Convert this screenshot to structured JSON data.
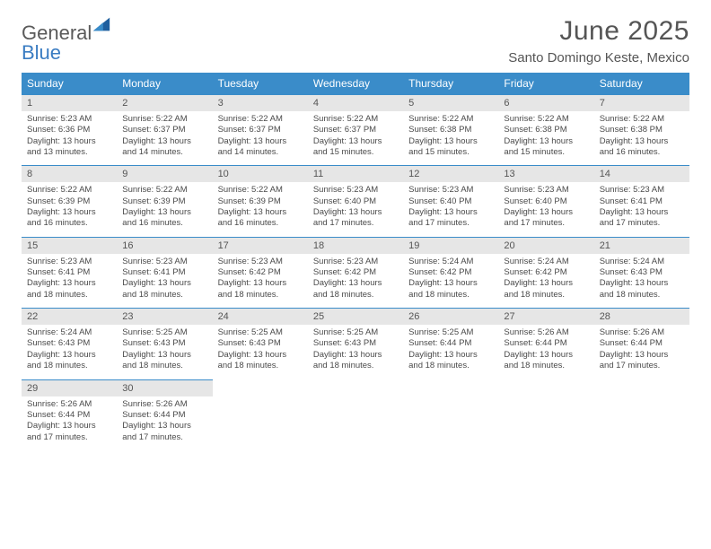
{
  "logo": {
    "line1": "General",
    "line2": "Blue"
  },
  "title": "June 2025",
  "subtitle": "Santo Domingo Keste, Mexico",
  "colors": {
    "header_bg": "#3a8cc9",
    "header_fg": "#ffffff",
    "daynum_bg": "#e6e6e6",
    "text": "#4a4a4a",
    "rule": "#3a8cc9",
    "logo_gray": "#5a5a5a",
    "logo_blue": "#3a7cc2"
  },
  "day_names": [
    "Sunday",
    "Monday",
    "Tuesday",
    "Wednesday",
    "Thursday",
    "Friday",
    "Saturday"
  ],
  "weeks": [
    [
      {
        "n": "1",
        "sr": "5:23 AM",
        "ss": "6:36 PM",
        "dl": "13 hours and 13 minutes."
      },
      {
        "n": "2",
        "sr": "5:22 AM",
        "ss": "6:37 PM",
        "dl": "13 hours and 14 minutes."
      },
      {
        "n": "3",
        "sr": "5:22 AM",
        "ss": "6:37 PM",
        "dl": "13 hours and 14 minutes."
      },
      {
        "n": "4",
        "sr": "5:22 AM",
        "ss": "6:37 PM",
        "dl": "13 hours and 15 minutes."
      },
      {
        "n": "5",
        "sr": "5:22 AM",
        "ss": "6:38 PM",
        "dl": "13 hours and 15 minutes."
      },
      {
        "n": "6",
        "sr": "5:22 AM",
        "ss": "6:38 PM",
        "dl": "13 hours and 15 minutes."
      },
      {
        "n": "7",
        "sr": "5:22 AM",
        "ss": "6:38 PM",
        "dl": "13 hours and 16 minutes."
      }
    ],
    [
      {
        "n": "8",
        "sr": "5:22 AM",
        "ss": "6:39 PM",
        "dl": "13 hours and 16 minutes."
      },
      {
        "n": "9",
        "sr": "5:22 AM",
        "ss": "6:39 PM",
        "dl": "13 hours and 16 minutes."
      },
      {
        "n": "10",
        "sr": "5:22 AM",
        "ss": "6:39 PM",
        "dl": "13 hours and 16 minutes."
      },
      {
        "n": "11",
        "sr": "5:23 AM",
        "ss": "6:40 PM",
        "dl": "13 hours and 17 minutes."
      },
      {
        "n": "12",
        "sr": "5:23 AM",
        "ss": "6:40 PM",
        "dl": "13 hours and 17 minutes."
      },
      {
        "n": "13",
        "sr": "5:23 AM",
        "ss": "6:40 PM",
        "dl": "13 hours and 17 minutes."
      },
      {
        "n": "14",
        "sr": "5:23 AM",
        "ss": "6:41 PM",
        "dl": "13 hours and 17 minutes."
      }
    ],
    [
      {
        "n": "15",
        "sr": "5:23 AM",
        "ss": "6:41 PM",
        "dl": "13 hours and 18 minutes."
      },
      {
        "n": "16",
        "sr": "5:23 AM",
        "ss": "6:41 PM",
        "dl": "13 hours and 18 minutes."
      },
      {
        "n": "17",
        "sr": "5:23 AM",
        "ss": "6:42 PM",
        "dl": "13 hours and 18 minutes."
      },
      {
        "n": "18",
        "sr": "5:23 AM",
        "ss": "6:42 PM",
        "dl": "13 hours and 18 minutes."
      },
      {
        "n": "19",
        "sr": "5:24 AM",
        "ss": "6:42 PM",
        "dl": "13 hours and 18 minutes."
      },
      {
        "n": "20",
        "sr": "5:24 AM",
        "ss": "6:42 PM",
        "dl": "13 hours and 18 minutes."
      },
      {
        "n": "21",
        "sr": "5:24 AM",
        "ss": "6:43 PM",
        "dl": "13 hours and 18 minutes."
      }
    ],
    [
      {
        "n": "22",
        "sr": "5:24 AM",
        "ss": "6:43 PM",
        "dl": "13 hours and 18 minutes."
      },
      {
        "n": "23",
        "sr": "5:25 AM",
        "ss": "6:43 PM",
        "dl": "13 hours and 18 minutes."
      },
      {
        "n": "24",
        "sr": "5:25 AM",
        "ss": "6:43 PM",
        "dl": "13 hours and 18 minutes."
      },
      {
        "n": "25",
        "sr": "5:25 AM",
        "ss": "6:43 PM",
        "dl": "13 hours and 18 minutes."
      },
      {
        "n": "26",
        "sr": "5:25 AM",
        "ss": "6:44 PM",
        "dl": "13 hours and 18 minutes."
      },
      {
        "n": "27",
        "sr": "5:26 AM",
        "ss": "6:44 PM",
        "dl": "13 hours and 18 minutes."
      },
      {
        "n": "28",
        "sr": "5:26 AM",
        "ss": "6:44 PM",
        "dl": "13 hours and 17 minutes."
      }
    ],
    [
      {
        "n": "29",
        "sr": "5:26 AM",
        "ss": "6:44 PM",
        "dl": "13 hours and 17 minutes."
      },
      {
        "n": "30",
        "sr": "5:26 AM",
        "ss": "6:44 PM",
        "dl": "13 hours and 17 minutes."
      },
      null,
      null,
      null,
      null,
      null
    ]
  ],
  "labels": {
    "sunrise": "Sunrise:",
    "sunset": "Sunset:",
    "daylight": "Daylight:"
  }
}
